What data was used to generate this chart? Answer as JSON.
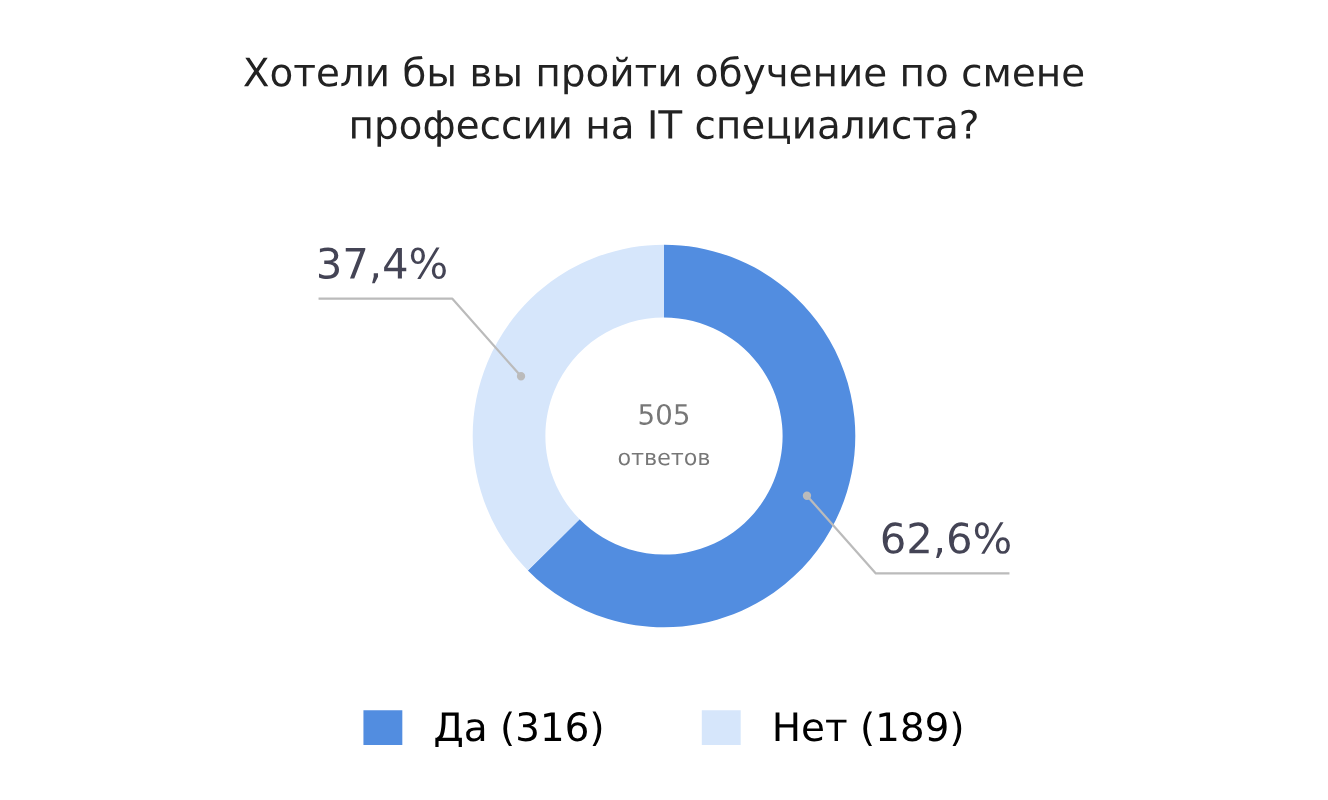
{
  "chart_data": {
    "type": "donut",
    "title": "Хотели бы вы пройти обучение по смене\nпрофессии на IT специалиста?",
    "categories": [
      "Да (316)",
      "Нет (189)"
    ],
    "values": [
      62.6,
      37.4
    ],
    "colors": [
      "#528de0",
      "#d6e6fb"
    ],
    "value_labels": [
      "62,6%",
      "37,4%"
    ],
    "annotations": [
      "505",
      "ответов"
    ],
    "legend": "bottom"
  }
}
